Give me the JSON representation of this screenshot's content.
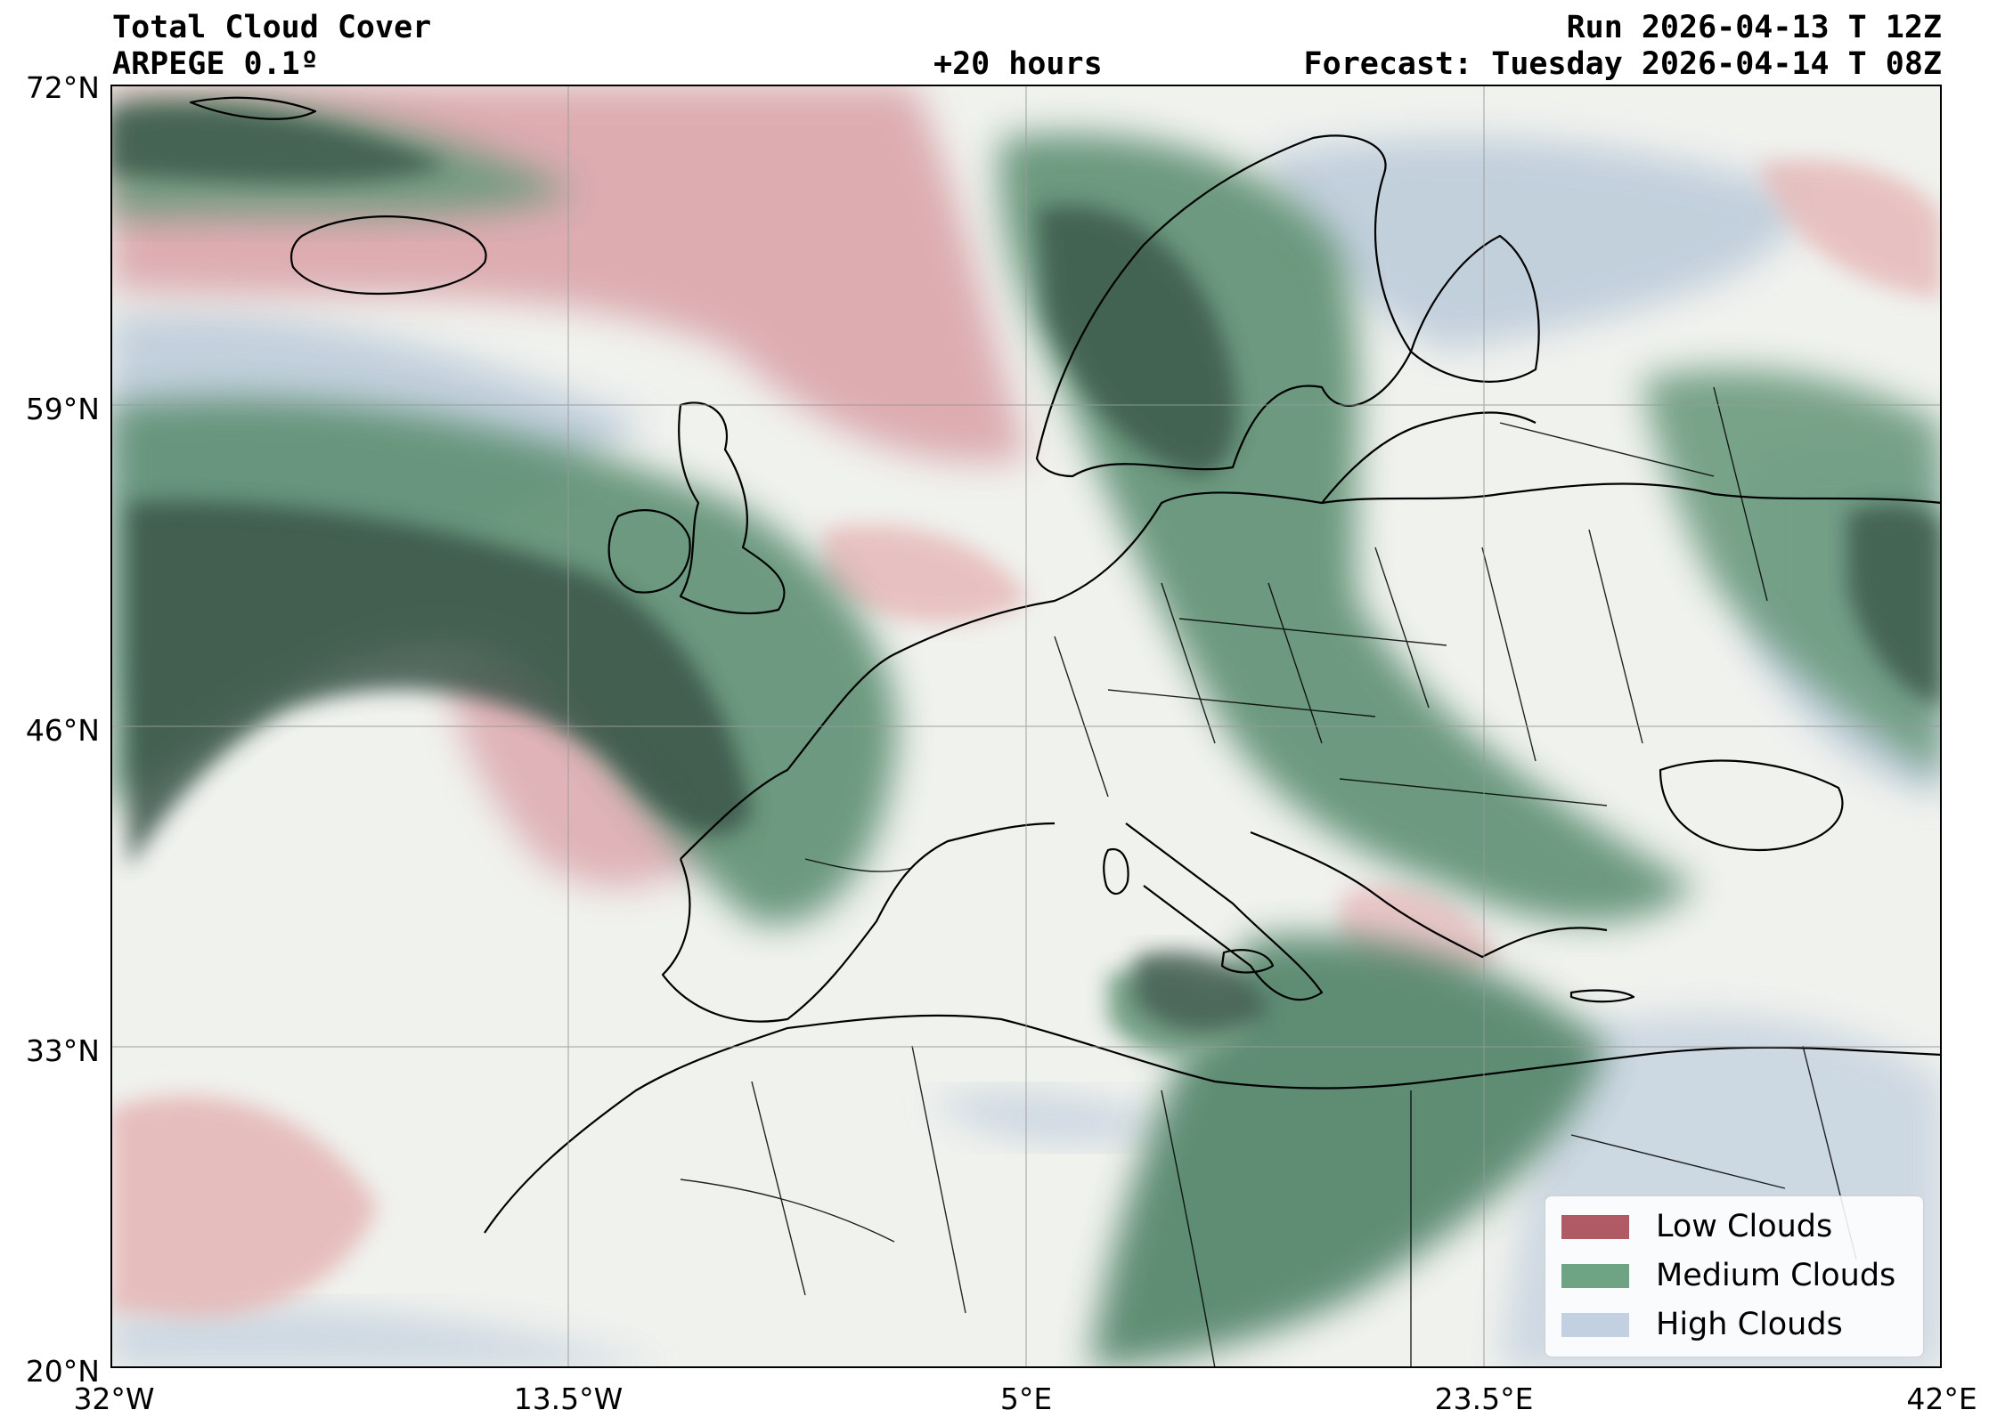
{
  "header": {
    "title": "Total Cloud Cover",
    "model": "ARPEGE 0.1º",
    "lead_time": "+20 hours",
    "run": "Run 2026-04-13 T 12Z",
    "forecast": "Forecast: Tuesday 2026-04-14 T 08Z"
  },
  "axes": {
    "lat_ticks": [
      "72°N",
      "59°N",
      "46°N",
      "33°N",
      "20°N"
    ],
    "lon_ticks": [
      "32°W",
      "13.5°W",
      "5°E",
      "23.5°E",
      "42°E"
    ],
    "lat_range": [
      20,
      72
    ],
    "lon_range": [
      -32,
      42
    ],
    "gridlines": true
  },
  "legend": {
    "placement": "bottom-right",
    "items": [
      {
        "label": "Low Clouds",
        "color": "#b05a66"
      },
      {
        "label": "Medium Clouds",
        "color": "#6fa384"
      },
      {
        "label": "High Clouds",
        "color": "#c2d0e2"
      }
    ]
  },
  "colors": {
    "map_background": "#f0f2ee",
    "low_clouds": "#d9a0a6",
    "medium_clouds": "#5d8f72",
    "dense_clouds": "#3a5448",
    "high_clouds": "#b7c7d8",
    "coastline": "#000000"
  }
}
